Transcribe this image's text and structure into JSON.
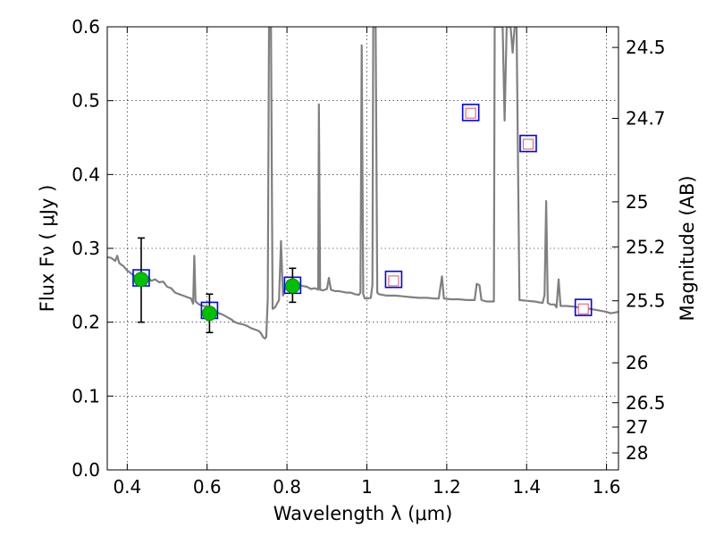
{
  "chart_data": {
    "type": "scatter",
    "title": "",
    "xlabel": "Wavelength  λ (μm)",
    "ylabel": "Flux  Fν  ( μJy )",
    "ylabel_right": "Magnitude (AB)",
    "xlim": [
      0.35,
      1.63
    ],
    "ylim": [
      0.0,
      0.6
    ],
    "grid": true,
    "x_ticks": [
      {
        "value": 0.4,
        "label": "0.4"
      },
      {
        "value": 0.6,
        "label": "0.6"
      },
      {
        "value": 0.8,
        "label": "0.8"
      },
      {
        "value": 1.0,
        "label": "1"
      },
      {
        "value": 1.2,
        "label": "1.2"
      },
      {
        "value": 1.4,
        "label": "1.4"
      },
      {
        "value": 1.6,
        "label": "1.6"
      }
    ],
    "y_ticks": [
      {
        "value": 0.0,
        "label": "0.0"
      },
      {
        "value": 0.1,
        "label": "0.1"
      },
      {
        "value": 0.2,
        "label": "0.2"
      },
      {
        "value": 0.3,
        "label": "0.3"
      },
      {
        "value": 0.4,
        "label": "0.4"
      },
      {
        "value": 0.5,
        "label": "0.5"
      },
      {
        "value": 0.6,
        "label": "0.6"
      }
    ],
    "right_ticks": [
      {
        "flux": 0.572,
        "label": "24.5"
      },
      {
        "flux": 0.476,
        "label": "24.7"
      },
      {
        "flux": 0.363,
        "label": "25"
      },
      {
        "flux": 0.302,
        "label": "25.2"
      },
      {
        "flux": 0.229,
        "label": "25.5"
      },
      {
        "flux": 0.145,
        "label": "26"
      },
      {
        "flux": 0.091,
        "label": "26.5"
      },
      {
        "flux": 0.058,
        "label": "27"
      },
      {
        "flux": 0.023,
        "label": "28"
      }
    ],
    "template_spectrum": {
      "color": "#808080",
      "points": [
        [
          0.35,
          0.288
        ],
        [
          0.36,
          0.287
        ],
        [
          0.37,
          0.283
        ],
        [
          0.375,
          0.29
        ],
        [
          0.38,
          0.28
        ],
        [
          0.39,
          0.276
        ],
        [
          0.4,
          0.27
        ],
        [
          0.41,
          0.266
        ],
        [
          0.42,
          0.262
        ],
        [
          0.43,
          0.262
        ],
        [
          0.44,
          0.258
        ],
        [
          0.45,
          0.262
        ],
        [
          0.46,
          0.256
        ],
        [
          0.47,
          0.258
        ],
        [
          0.48,
          0.254
        ],
        [
          0.49,
          0.255
        ],
        [
          0.5,
          0.248
        ],
        [
          0.51,
          0.246
        ],
        [
          0.52,
          0.24
        ],
        [
          0.53,
          0.238
        ],
        [
          0.54,
          0.236
        ],
        [
          0.55,
          0.234
        ],
        [
          0.56,
          0.232
        ],
        [
          0.565,
          0.225
        ],
        [
          0.568,
          0.29
        ],
        [
          0.571,
          0.228
        ],
        [
          0.58,
          0.224
        ],
        [
          0.59,
          0.222
        ],
        [
          0.6,
          0.221
        ],
        [
          0.61,
          0.219
        ],
        [
          0.62,
          0.214
        ],
        [
          0.63,
          0.212
        ],
        [
          0.64,
          0.21
        ],
        [
          0.65,
          0.207
        ],
        [
          0.66,
          0.204
        ],
        [
          0.67,
          0.2
        ],
        [
          0.68,
          0.198
        ],
        [
          0.69,
          0.197
        ],
        [
          0.7,
          0.195
        ],
        [
          0.71,
          0.192
        ],
        [
          0.72,
          0.19
        ],
        [
          0.73,
          0.188
        ],
        [
          0.735,
          0.185
        ],
        [
          0.74,
          0.18
        ],
        [
          0.745,
          0.178
        ],
        [
          0.748,
          0.18
        ],
        [
          0.752,
          0.232
        ],
        [
          0.755,
          0.6
        ],
        [
          0.76,
          0.6
        ],
        [
          0.764,
          0.218
        ],
        [
          0.77,
          0.22
        ],
        [
          0.775,
          0.225
        ],
        [
          0.78,
          0.23
        ],
        [
          0.785,
          0.31
        ],
        [
          0.79,
          0.236
        ],
        [
          0.795,
          0.245
        ],
        [
          0.8,
          0.252
        ],
        [
          0.81,
          0.255
        ],
        [
          0.82,
          0.25
        ],
        [
          0.83,
          0.25
        ],
        [
          0.84,
          0.249
        ],
        [
          0.85,
          0.248
        ],
        [
          0.86,
          0.245
        ],
        [
          0.87,
          0.246
        ],
        [
          0.878,
          0.244
        ],
        [
          0.88,
          0.495
        ],
        [
          0.883,
          0.244
        ],
        [
          0.89,
          0.243
        ],
        [
          0.9,
          0.245
        ],
        [
          0.905,
          0.26
        ],
        [
          0.91,
          0.244
        ],
        [
          0.92,
          0.242
        ],
        [
          0.93,
          0.242
        ],
        [
          0.94,
          0.241
        ],
        [
          0.95,
          0.24
        ],
        [
          0.96,
          0.24
        ],
        [
          0.97,
          0.238
        ],
        [
          0.98,
          0.237
        ],
        [
          0.984,
          0.24
        ],
        [
          0.987,
          0.575
        ],
        [
          0.991,
          0.238
        ],
        [
          0.995,
          0.232
        ],
        [
          1.0,
          0.232
        ],
        [
          1.01,
          0.233
        ],
        [
          1.014,
          0.25
        ],
        [
          1.016,
          0.6
        ],
        [
          1.022,
          0.6
        ],
        [
          1.026,
          0.24
        ],
        [
          1.03,
          0.238
        ],
        [
          1.05,
          0.236
        ],
        [
          1.07,
          0.236
        ],
        [
          1.09,
          0.235
        ],
        [
          1.11,
          0.234
        ],
        [
          1.13,
          0.233
        ],
        [
          1.15,
          0.233
        ],
        [
          1.17,
          0.232
        ],
        [
          1.18,
          0.232
        ],
        [
          1.188,
          0.262
        ],
        [
          1.193,
          0.232
        ],
        [
          1.21,
          0.231
        ],
        [
          1.23,
          0.231
        ],
        [
          1.25,
          0.23
        ],
        [
          1.26,
          0.23
        ],
        [
          1.27,
          0.23
        ],
        [
          1.275,
          0.252
        ],
        [
          1.282,
          0.25
        ],
        [
          1.287,
          0.23
        ],
        [
          1.3,
          0.228
        ],
        [
          1.318,
          0.228
        ],
        [
          1.32,
          0.6
        ],
        [
          1.34,
          0.6
        ],
        [
          1.345,
          0.473
        ],
        [
          1.35,
          0.6
        ],
        [
          1.36,
          0.6
        ],
        [
          1.365,
          0.565
        ],
        [
          1.37,
          0.6
        ],
        [
          1.375,
          0.6
        ],
        [
          1.382,
          0.23
        ],
        [
          1.4,
          0.229
        ],
        [
          1.42,
          0.228
        ],
        [
          1.44,
          0.226
        ],
        [
          1.445,
          0.237
        ],
        [
          1.449,
          0.364
        ],
        [
          1.453,
          0.226
        ],
        [
          1.46,
          0.224
        ],
        [
          1.47,
          0.224
        ],
        [
          1.475,
          0.22
        ],
        [
          1.48,
          0.258
        ],
        [
          1.485,
          0.222
        ],
        [
          1.5,
          0.222
        ],
        [
          1.52,
          0.221
        ],
        [
          1.54,
          0.219
        ],
        [
          1.56,
          0.218
        ],
        [
          1.58,
          0.216
        ],
        [
          1.6,
          0.214
        ],
        [
          1.61,
          0.212
        ],
        [
          1.62,
          0.213
        ],
        [
          1.63,
          0.214
        ]
      ]
    },
    "model_points": [
      {
        "x": 0.435,
        "y": 0.26
      },
      {
        "x": 0.606,
        "y": 0.216
      },
      {
        "x": 0.814,
        "y": 0.25
      },
      {
        "x": 1.067,
        "y": 0.258
      },
      {
        "x": 1.26,
        "y": 0.484
      },
      {
        "x": 1.404,
        "y": 0.442
      },
      {
        "x": 1.542,
        "y": 0.22
      }
    ],
    "observed_points": [
      {
        "x": 0.435,
        "y": 0.258,
        "yerr_low": 0.058,
        "yerr_high": 0.056
      },
      {
        "x": 0.606,
        "y": 0.212,
        "yerr_low": 0.026,
        "yerr_high": 0.026
      },
      {
        "x": 0.814,
        "y": 0.249,
        "yerr_low": 0.022,
        "yerr_high": 0.024
      }
    ],
    "upper_limits": [
      {
        "x": 1.067,
        "y": 0.256
      },
      {
        "x": 1.26,
        "y": 0.483
      },
      {
        "x": 1.404,
        "y": 0.441
      },
      {
        "x": 1.542,
        "y": 0.218
      }
    ],
    "colors": {
      "spectrum": "#808080",
      "model_box": "#0000ff",
      "observed_fill": "#00c000",
      "observed_stroke": "#009000",
      "upper_limit": "#e07070",
      "errorbar": "#000000"
    }
  }
}
